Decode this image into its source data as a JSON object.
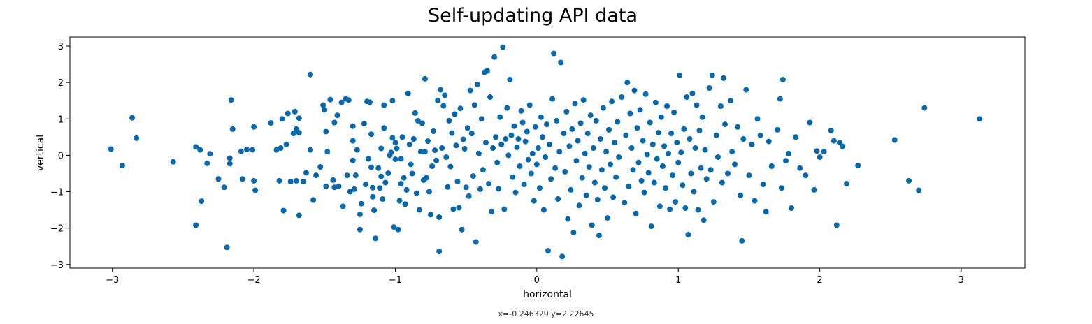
{
  "chart_data": {
    "type": "scatter",
    "title": "Self-updating API data",
    "xlabel": "horizontal",
    "ylabel": "vertical",
    "xlim": [
      -3.3,
      3.45
    ],
    "ylim": [
      -3.1,
      3.25
    ],
    "xticks": [
      -3,
      -2,
      -1,
      0,
      1,
      2,
      3
    ],
    "xtick_labels": [
      "−3",
      "−2",
      "−1",
      "0",
      "1",
      "2",
      "3"
    ],
    "yticks": [
      -3,
      -2,
      -1,
      0,
      1,
      2,
      3
    ],
    "ytick_labels": [
      "−3",
      "−2",
      "−1",
      "0",
      "1",
      "2",
      "3"
    ],
    "grid": false,
    "marker_color": "#0868ac",
    "points": [
      [
        -3.01,
        0.17
      ],
      [
        -2.93,
        -0.28
      ],
      [
        -2.86,
        1.03
      ],
      [
        -2.83,
        0.47
      ],
      [
        -2.57,
        -0.18
      ],
      [
        -2.41,
        0.23
      ],
      [
        -2.41,
        -1.92
      ],
      [
        -2.38,
        0.15
      ],
      [
        -2.37,
        -1.26
      ],
      [
        -2.33,
        -0.22
      ],
      [
        -2.31,
        0.04
      ],
      [
        -2.25,
        -0.65
      ],
      [
        -2.21,
        -0.88
      ],
      [
        -2.19,
        -2.53
      ],
      [
        -2.17,
        -0.08
      ],
      [
        -2.17,
        -0.23
      ],
      [
        -2.16,
        1.52
      ],
      [
        -2.15,
        0.72
      ],
      [
        -2.09,
        0.11
      ],
      [
        -2.08,
        -0.65
      ],
      [
        -2.05,
        0.16
      ],
      [
        -2.01,
        0.15
      ],
      [
        -2.0,
        0.78
      ],
      [
        -2.0,
        -0.7
      ],
      [
        -1.99,
        -0.96
      ],
      [
        -1.88,
        0.89
      ],
      [
        -1.84,
        0.15
      ],
      [
        -1.82,
        -0.7
      ],
      [
        -1.81,
        0.2
      ],
      [
        -1.8,
        1.0
      ],
      [
        -1.79,
        -1.52
      ],
      [
        -1.77,
        0.3
      ],
      [
        -1.76,
        1.15
      ],
      [
        -1.74,
        -0.72
      ],
      [
        -1.72,
        0.6
      ],
      [
        -1.71,
        1.2
      ],
      [
        -1.7,
        0.72
      ],
      [
        -1.7,
        -0.7
      ],
      [
        -1.68,
        1.02
      ],
      [
        -1.68,
        0.62
      ],
      [
        -1.68,
        -1.65
      ],
      [
        -1.65,
        -0.72
      ],
      [
        -1.63,
        -0.48
      ],
      [
        -1.6,
        0.15
      ],
      [
        -1.6,
        2.22
      ],
      [
        -1.58,
        -1.23
      ],
      [
        -1.56,
        -0.55
      ],
      [
        -1.53,
        -0.32
      ],
      [
        -1.51,
        1.38
      ],
      [
        -1.5,
        1.25
      ],
      [
        -1.49,
        0.65
      ],
      [
        -1.49,
        -0.85
      ],
      [
        -1.48,
        0.1
      ],
      [
        -1.46,
        1.53
      ],
      [
        -1.44,
        -0.68
      ],
      [
        -1.43,
        0.9
      ],
      [
        -1.43,
        -0.88
      ],
      [
        -1.41,
        1.1
      ],
      [
        -1.4,
        -0.85
      ],
      [
        -1.38,
        1.45
      ],
      [
        -1.37,
        -1.4
      ],
      [
        -1.35,
        1.55
      ],
      [
        -1.34,
        -0.55
      ],
      [
        -1.33,
        1.52
      ],
      [
        -1.32,
        -1.0
      ],
      [
        -1.3,
        -0.14
      ],
      [
        -1.3,
        0.4
      ],
      [
        -1.3,
        0.8
      ],
      [
        -1.29,
        -0.93
      ],
      [
        -1.28,
        -0.55
      ],
      [
        -1.27,
        0.15
      ],
      [
        -1.25,
        -1.62
      ],
      [
        -1.25,
        -2.04
      ],
      [
        -1.24,
        -1.33
      ],
      [
        -1.22,
        0.87
      ],
      [
        -1.21,
        -0.8
      ],
      [
        -1.2,
        1.48
      ],
      [
        -1.19,
        -0.1
      ],
      [
        -1.18,
        1.46
      ],
      [
        -1.17,
        0.58
      ],
      [
        -1.17,
        -0.33
      ],
      [
        -1.16,
        -0.89
      ],
      [
        -1.16,
        -1.14
      ],
      [
        -1.15,
        -1.51
      ],
      [
        -1.14,
        -2.28
      ],
      [
        -1.12,
        -0.35
      ],
      [
        -1.11,
        -0.9
      ],
      [
        -1.1,
        0.19
      ],
      [
        -1.1,
        -0.58
      ],
      [
        -1.09,
        -1.2
      ],
      [
        -1.08,
        0.75
      ],
      [
        -1.08,
        1.38
      ],
      [
        -1.07,
        -0.75
      ],
      [
        -1.05,
        -0.49
      ],
      [
        -1.04,
        0.0
      ],
      [
        -1.03,
        0.08
      ],
      [
        -1.02,
        0.48
      ],
      [
        -1.02,
        1.5
      ],
      [
        -1.01,
        -1.97
      ],
      [
        -1.0,
        -0.11
      ],
      [
        -1.0,
        0.35
      ],
      [
        -0.99,
        0.19
      ],
      [
        -0.98,
        -2.04
      ],
      [
        -0.97,
        -1.25
      ],
      [
        -0.96,
        -0.78
      ],
      [
        -0.96,
        -0.1
      ],
      [
        -0.95,
        0.5
      ],
      [
        -0.94,
        -0.62
      ],
      [
        -0.93,
        -1.34
      ],
      [
        -0.92,
        -0.95
      ],
      [
        -0.91,
        1.7
      ],
      [
        -0.9,
        0.3
      ],
      [
        -0.89,
        -0.25
      ],
      [
        -0.88,
        -0.5
      ],
      [
        -0.87,
        0.45
      ],
      [
        -0.86,
        1.16
      ],
      [
        -0.85,
        -1.04
      ],
      [
        -0.84,
        0.95
      ],
      [
        -0.83,
        -1.5
      ],
      [
        -0.82,
        0.1
      ],
      [
        -0.81,
        0.88
      ],
      [
        -0.8,
        -0.68
      ],
      [
        -0.79,
        0.1
      ],
      [
        -0.79,
        2.1
      ],
      [
        -0.78,
        -0.62
      ],
      [
        -0.77,
        0.39
      ],
      [
        -0.76,
        -1.0
      ],
      [
        -0.75,
        -1.63
      ],
      [
        -0.74,
        -0.3
      ],
      [
        -0.73,
        0.66
      ],
      [
        -0.72,
        0.14
      ],
      [
        -0.71,
        -0.14
      ],
      [
        -0.7,
        1.51
      ],
      [
        -0.69,
        -1.7
      ],
      [
        -0.69,
        -2.64
      ],
      [
        -0.68,
        1.8
      ],
      [
        -0.67,
        0.2
      ],
      [
        -0.66,
        1.36
      ],
      [
        -0.65,
        1.65
      ],
      [
        -0.64,
        -0.05
      ],
      [
        -0.63,
        -0.87
      ],
      [
        -0.62,
        0.95
      ],
      [
        -0.61,
        -0.31
      ],
      [
        -0.6,
        0.61
      ],
      [
        -0.59,
        -1.48
      ],
      [
        -0.58,
        1.13
      ],
      [
        -0.57,
        0.27
      ],
      [
        -0.56,
        -0.72
      ],
      [
        -0.55,
        -1.44
      ],
      [
        -0.54,
        1.29
      ],
      [
        -0.53,
        -2.04
      ],
      [
        -0.52,
        0.44
      ],
      [
        -0.51,
        0.18
      ],
      [
        -0.5,
        -0.88
      ],
      [
        -0.49,
        0.75
      ],
      [
        -0.48,
        -1.12
      ],
      [
        -0.47,
        1.78
      ],
      [
        -0.46,
        0.6
      ],
      [
        -0.45,
        -0.57
      ],
      [
        -0.44,
        1.38
      ],
      [
        -0.43,
        -2.38
      ],
      [
        -0.42,
        1.95
      ],
      [
        -0.41,
        0.05
      ],
      [
        -0.4,
        -0.93
      ],
      [
        -0.39,
        1.0
      ],
      [
        -0.38,
        -0.4
      ],
      [
        -0.37,
        2.28
      ],
      [
        -0.36,
        0.35
      ],
      [
        -0.35,
        2.32
      ],
      [
        -0.34,
        -0.78
      ],
      [
        -0.33,
        1.6
      ],
      [
        -0.32,
        -1.55
      ],
      [
        -0.31,
        0.2
      ],
      [
        -0.3,
        2.7
      ],
      [
        -0.29,
        0.5
      ],
      [
        -0.28,
        -0.2
      ],
      [
        -0.27,
        -0.92
      ],
      [
        -0.26,
        1.05
      ],
      [
        -0.25,
        0.3
      ],
      [
        -0.24,
        2.97
      ],
      [
        -0.23,
        -1.48
      ],
      [
        -0.22,
        0.45
      ],
      [
        -0.21,
        1.3
      ],
      [
        -0.2,
        0.0
      ],
      [
        -0.19,
        2.08
      ],
      [
        -0.18,
        0.55
      ],
      [
        -0.17,
        -0.6
      ],
      [
        -0.16,
        0.8
      ],
      [
        -0.15,
        -1.02
      ],
      [
        -0.14,
        0.22
      ],
      [
        -0.13,
        0.45
      ],
      [
        -0.12,
        -0.3
      ],
      [
        -0.11,
        1.22
      ],
      [
        -0.1,
        0.9
      ],
      [
        -0.09,
        -0.8
      ],
      [
        -0.08,
        0.38
      ],
      [
        -0.07,
        0.65
      ],
      [
        -0.06,
        -0.12
      ],
      [
        -0.05,
        1.38
      ],
      [
        -0.04,
        -0.5
      ],
      [
        -0.03,
        0.05
      ],
      [
        -0.02,
        -1.25
      ],
      [
        -0.01,
        0.78
      ],
      [
        0.0,
        -0.25
      ],
      [
        0.01,
        0.2
      ],
      [
        0.02,
        -0.9
      ],
      [
        0.03,
        1.05
      ],
      [
        0.04,
        0.5
      ],
      [
        0.05,
        -1.5
      ],
      [
        0.06,
        -0.05
      ],
      [
        0.07,
        0.85
      ],
      [
        0.08,
        -2.62
      ],
      [
        0.09,
        0.3
      ],
      [
        0.1,
        -0.65
      ],
      [
        0.11,
        1.55
      ],
      [
        0.12,
        2.8
      ],
      [
        0.13,
        -0.35
      ],
      [
        0.14,
        0.95
      ],
      [
        0.15,
        -1.2
      ],
      [
        0.16,
        0.1
      ],
      [
        0.17,
        2.55
      ],
      [
        0.18,
        -2.78
      ],
      [
        0.19,
        0.6
      ],
      [
        0.2,
        -0.45
      ],
      [
        0.21,
        1.2
      ],
      [
        0.22,
        -1.75
      ],
      [
        0.23,
        0.25
      ],
      [
        0.24,
        -0.95
      ],
      [
        0.25,
        0.72
      ],
      [
        0.26,
        -2.12
      ],
      [
        0.27,
        1.42
      ],
      [
        0.28,
        -0.15
      ],
      [
        0.29,
        0.4
      ],
      [
        0.3,
        -1.38
      ],
      [
        0.31,
        0.88
      ],
      [
        0.32,
        -0.62
      ],
      [
        0.33,
        1.52
      ],
      [
        0.34,
        0.05
      ],
      [
        0.35,
        -1.1
      ],
      [
        0.36,
        0.6
      ],
      [
        0.37,
        -0.32
      ],
      [
        0.38,
        1.1
      ],
      [
        0.39,
        -1.92
      ],
      [
        0.4,
        0.2
      ],
      [
        0.41,
        -0.75
      ],
      [
        0.42,
        0.95
      ],
      [
        0.43,
        -1.22
      ],
      [
        0.44,
        -2.2
      ],
      [
        0.45,
        0.45
      ],
      [
        0.46,
        -0.4
      ],
      [
        0.47,
        1.3
      ],
      [
        0.48,
        -0.9
      ],
      [
        0.49,
        0.1
      ],
      [
        0.5,
        -1.72
      ],
      [
        0.51,
        0.7
      ],
      [
        0.52,
        -0.25
      ],
      [
        0.53,
        1.48
      ],
      [
        0.54,
        -1.15
      ],
      [
        0.55,
        0.35
      ],
      [
        0.56,
        -0.6
      ],
      [
        0.57,
        0.92
      ],
      [
        0.58,
        -0.05
      ],
      [
        0.6,
        1.6
      ],
      [
        0.62,
        -1.3
      ],
      [
        0.63,
        0.55
      ],
      [
        0.64,
        2.0
      ],
      [
        0.65,
        -0.85
      ],
      [
        0.66,
        1.15
      ],
      [
        0.67,
        0.2
      ],
      [
        0.68,
        -0.4
      ],
      [
        0.69,
        1.78
      ],
      [
        0.7,
        -1.6
      ],
      [
        0.71,
        0.75
      ],
      [
        0.72,
        -0.2
      ],
      [
        0.73,
        1.25
      ],
      [
        0.74,
        -0.7
      ],
      [
        0.75,
        0.4
      ],
      [
        0.76,
        -1.02
      ],
      [
        0.77,
        1.68
      ],
      [
        0.78,
        0.02
      ],
      [
        0.79,
        -0.48
      ],
      [
        0.8,
        0.9
      ],
      [
        0.81,
        -1.95
      ],
      [
        0.82,
        0.3
      ],
      [
        0.83,
        -0.75
      ],
      [
        0.84,
        1.45
      ],
      [
        0.85,
        -0.1
      ],
      [
        0.86,
        0.62
      ],
      [
        0.87,
        -1.4
      ],
      [
        0.88,
        1.05
      ],
      [
        0.89,
        -0.3
      ],
      [
        0.9,
        0.25
      ],
      [
        0.91,
        -0.9
      ],
      [
        0.92,
        1.35
      ],
      [
        0.93,
        0.05
      ],
      [
        0.94,
        -1.48
      ],
      [
        0.95,
        0.6
      ],
      [
        0.96,
        -0.55
      ],
      [
        0.97,
        1.18
      ],
      [
        0.98,
        -1.28
      ],
      [
        0.99,
        0.35
      ],
      [
        1.0,
        -0.2
      ],
      [
        1.01,
        2.2
      ],
      [
        1.02,
        0.08
      ],
      [
        1.03,
        -0.82
      ],
      [
        1.04,
        0.72
      ],
      [
        1.05,
        -1.45
      ],
      [
        1.06,
        1.6
      ],
      [
        1.07,
        -2.18
      ],
      [
        1.08,
        0.45
      ],
      [
        1.09,
        -0.5
      ],
      [
        1.1,
        1.7
      ],
      [
        1.11,
        -1.0
      ],
      [
        1.12,
        0.2
      ],
      [
        1.13,
        1.38
      ],
      [
        1.14,
        -1.5
      ],
      [
        1.15,
        0.68
      ],
      [
        1.16,
        -0.35
      ],
      [
        1.17,
        1.05
      ],
      [
        1.18,
        -1.78
      ],
      [
        1.19,
        0.15
      ],
      [
        1.2,
        -0.65
      ],
      [
        1.22,
        1.85
      ],
      [
        1.23,
        -0.4
      ],
      [
        1.24,
        2.2
      ],
      [
        1.25,
        -1.28
      ],
      [
        1.27,
        0.55
      ],
      [
        1.28,
        -0.05
      ],
      [
        1.3,
        1.35
      ],
      [
        1.31,
        -0.75
      ],
      [
        1.32,
        2.12
      ],
      [
        1.33,
        0.85
      ],
      [
        1.35,
        -0.5
      ],
      [
        1.37,
        1.5
      ],
      [
        1.38,
        0.1
      ],
      [
        1.4,
        -0.25
      ],
      [
        1.42,
        0.78
      ],
      [
        1.44,
        -1.1
      ],
      [
        1.45,
        -2.35
      ],
      [
        1.46,
        0.45
      ],
      [
        1.48,
        1.8
      ],
      [
        1.5,
        -0.55
      ],
      [
        1.52,
        0.3
      ],
      [
        1.54,
        -1.25
      ],
      [
        1.56,
        1.0
      ],
      [
        1.58,
        0.55
      ],
      [
        1.6,
        -0.8
      ],
      [
        1.62,
        -1.55
      ],
      [
        1.64,
        0.38
      ],
      [
        1.66,
        -0.3
      ],
      [
        1.7,
        0.7
      ],
      [
        1.72,
        1.55
      ],
      [
        1.73,
        -0.9
      ],
      [
        1.74,
        2.08
      ],
      [
        1.76,
        -0.15
      ],
      [
        1.78,
        0.05
      ],
      [
        1.8,
        -1.45
      ],
      [
        1.83,
        0.5
      ],
      [
        1.86,
        -0.35
      ],
      [
        1.9,
        -0.55
      ],
      [
        1.93,
        0.9
      ],
      [
        1.96,
        -0.95
      ],
      [
        1.98,
        0.12
      ],
      [
        2.0,
        -0.05
      ],
      [
        2.03,
        0.1
      ],
      [
        2.08,
        0.68
      ],
      [
        2.1,
        0.4
      ],
      [
        2.12,
        -1.92
      ],
      [
        2.14,
        0.35
      ],
      [
        2.16,
        0.25
      ],
      [
        2.19,
        -0.78
      ],
      [
        2.27,
        -0.28
      ],
      [
        2.53,
        0.42
      ],
      [
        2.63,
        -0.7
      ],
      [
        2.7,
        -0.96
      ],
      [
        2.74,
        1.3
      ],
      [
        3.13,
        1.0
      ]
    ]
  },
  "status_bar": {
    "coords_text": "x=-0.246329 y=2.22645"
  }
}
